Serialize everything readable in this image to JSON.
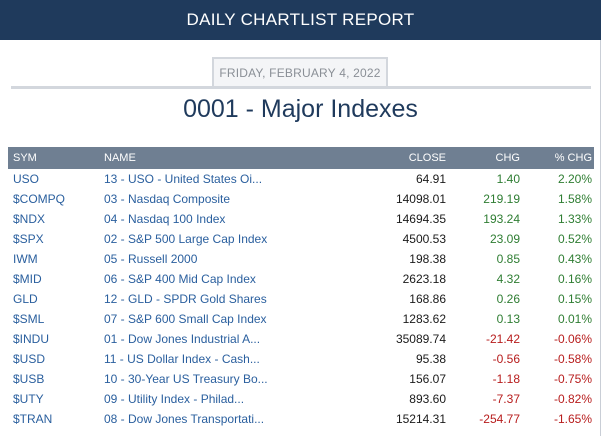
{
  "header": {
    "title": "DAILY CHARTLIST REPORT"
  },
  "report": {
    "date": "FRIDAY, FEBRUARY 4, 2022",
    "title": "0001 - Major Indexes"
  },
  "table": {
    "columns": [
      "SYM",
      "NAME",
      "CLOSE",
      "CHG",
      "% CHG"
    ],
    "rows": [
      {
        "sym": "USO",
        "name": "13 - USO - United States Oi...",
        "close": "64.91",
        "chg": "1.40",
        "pct": "2.20%",
        "dir": "pos"
      },
      {
        "sym": "$COMPQ",
        "name": "03 - Nasdaq Composite",
        "close": "14098.01",
        "chg": "219.19",
        "pct": "1.58%",
        "dir": "pos"
      },
      {
        "sym": "$NDX",
        "name": "04 - Nasdaq 100 Index",
        "close": "14694.35",
        "chg": "193.24",
        "pct": "1.33%",
        "dir": "pos"
      },
      {
        "sym": "$SPX",
        "name": "02 - S&P 500 Large Cap Index",
        "close": "4500.53",
        "chg": "23.09",
        "pct": "0.52%",
        "dir": "pos"
      },
      {
        "sym": "IWM",
        "name": "05 - Russell 2000",
        "close": "198.38",
        "chg": "0.85",
        "pct": "0.43%",
        "dir": "pos"
      },
      {
        "sym": "$MID",
        "name": "06 - S&P 400 Mid Cap Index",
        "close": "2623.18",
        "chg": "4.32",
        "pct": "0.16%",
        "dir": "pos"
      },
      {
        "sym": "GLD",
        "name": "12 - GLD - SPDR Gold Shares",
        "close": "168.86",
        "chg": "0.26",
        "pct": "0.15%",
        "dir": "pos"
      },
      {
        "sym": "$SML",
        "name": "07 - S&P 600 Small Cap Index",
        "close": "1283.62",
        "chg": "0.13",
        "pct": "0.01%",
        "dir": "pos"
      },
      {
        "sym": "$INDU",
        "name": "01 - Dow Jones Industrial A...",
        "close": "35089.74",
        "chg": "-21.42",
        "pct": "-0.06%",
        "dir": "neg"
      },
      {
        "sym": "$USD",
        "name": "11 - US Dollar Index - Cash...",
        "close": "95.38",
        "chg": "-0.56",
        "pct": "-0.58%",
        "dir": "neg"
      },
      {
        "sym": "$USB",
        "name": "10 - 30-Year US Treasury Bo...",
        "close": "156.07",
        "chg": "-1.18",
        "pct": "-0.75%",
        "dir": "neg"
      },
      {
        "sym": "$UTY",
        "name": "09 - Utility Index - Philad...",
        "close": "893.60",
        "chg": "-7.37",
        "pct": "-0.82%",
        "dir": "neg"
      },
      {
        "sym": "$TRAN",
        "name": "08 - Dow Jones Transportati...",
        "close": "15214.31",
        "chg": "-254.77",
        "pct": "-1.65%",
        "dir": "neg"
      }
    ]
  },
  "colors": {
    "header_bg": "#1f3a5c",
    "table_header_bg": "#6f7f92",
    "link": "#2a5f9e",
    "positive": "#2e7d32",
    "negative": "#b71c1c"
  }
}
